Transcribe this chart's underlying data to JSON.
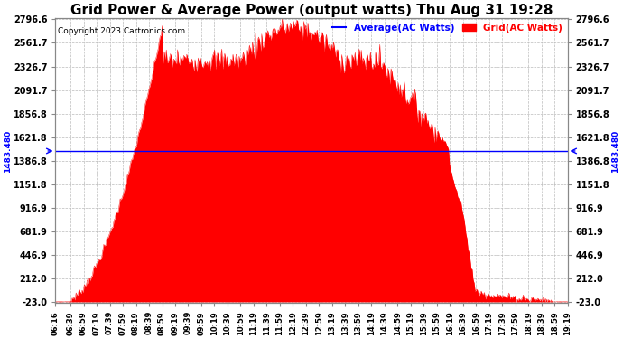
{
  "title": "Grid Power & Average Power (output watts) Thu Aug 31 19:28",
  "copyright": "Copyright 2023 Cartronics.com",
  "legend_labels": [
    "Average(AC Watts)",
    "Grid(AC Watts)"
  ],
  "legend_colors": [
    "blue",
    "red"
  ],
  "ymin": -23.0,
  "ymax": 2796.6,
  "yticks": [
    2796.6,
    2561.7,
    2326.7,
    2091.7,
    1856.8,
    1621.8,
    1386.8,
    1151.8,
    916.9,
    681.9,
    446.9,
    212.0,
    -23.0
  ],
  "average_line_y": 1483.48,
  "average_line_label": "1483.480",
  "background_color": "#ffffff",
  "grid_color": "#bbbbbb",
  "fill_color": "#ff0000",
  "line_color": "#ff0000",
  "title_color": "#000000",
  "title_fontsize": 11,
  "xtick_labels": [
    "06:16",
    "06:39",
    "06:59",
    "07:19",
    "07:39",
    "07:59",
    "08:19",
    "08:39",
    "08:59",
    "09:19",
    "09:39",
    "09:59",
    "10:19",
    "10:39",
    "10:59",
    "11:19",
    "11:39",
    "11:59",
    "12:19",
    "12:39",
    "12:59",
    "13:19",
    "13:39",
    "13:59",
    "14:19",
    "14:39",
    "14:59",
    "15:19",
    "15:39",
    "15:59",
    "16:19",
    "16:39",
    "16:59",
    "17:19",
    "17:39",
    "17:59",
    "18:19",
    "18:39",
    "18:59",
    "19:19"
  ]
}
